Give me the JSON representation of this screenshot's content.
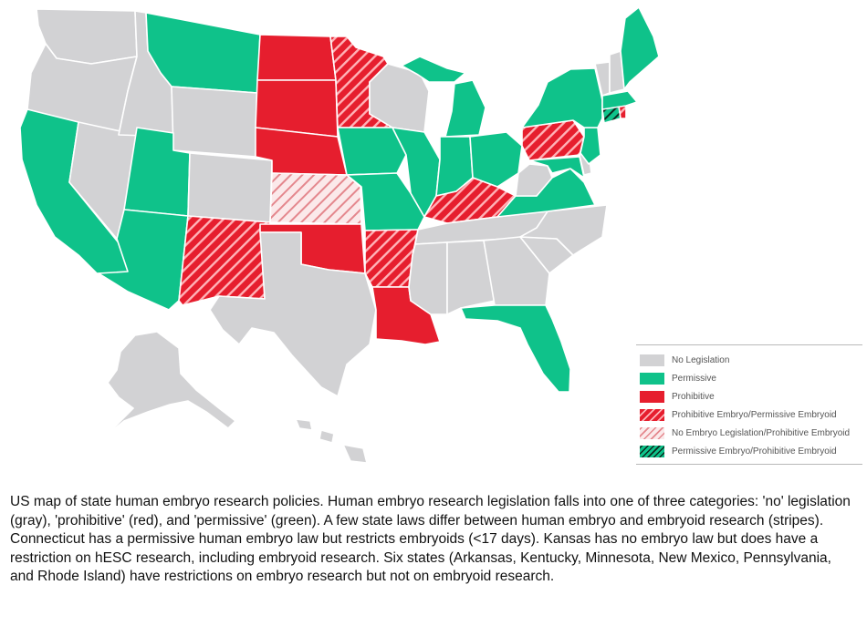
{
  "colors": {
    "no_legislation": "#d2d2d4",
    "permissive": "#0fc28a",
    "prohibitive": "#e61e2e",
    "stripe_light": "#ffffff",
    "border": "#ffffff"
  },
  "legend": {
    "items": [
      {
        "key": "none",
        "label": "No Legislation"
      },
      {
        "key": "perm",
        "label": "Permissive"
      },
      {
        "key": "proh",
        "label": "Prohibitive"
      },
      {
        "key": "redstripe",
        "label": "Prohibitive Embryo/Permissive Embryoid"
      },
      {
        "key": "pinkstripe",
        "label": "No Embryo Legislation/Prohibitive Embryoid"
      },
      {
        "key": "greenstripe",
        "label": "Permissive Embryo/Prohibitive Embryoid"
      }
    ]
  },
  "caption": "US map of state human embryo research policies. Human embryo research legislation falls into one of three categories: 'no' legislation (gray), 'prohibitive' (red), and 'permissive' (green). A few state laws differ between human embryo and embryoid research (stripes). Connecticut has a permissive human embryo law but restricts embryoids (<17 days). Kansas has no embryo law but does have a restriction on hESC research, including embryoid research. Six states (Arkansas, Kentucky, Minnesota, New Mexico, Pennsylvania, and Rhode Island) have restrictions on embryo research but not on embryoid research.",
  "states": [
    {
      "id": "WA",
      "name": "Washington",
      "cat": "none"
    },
    {
      "id": "OR",
      "name": "Oregon",
      "cat": "none"
    },
    {
      "id": "CA",
      "name": "California",
      "cat": "perm"
    },
    {
      "id": "NV",
      "name": "Nevada",
      "cat": "none"
    },
    {
      "id": "ID",
      "name": "Idaho",
      "cat": "none"
    },
    {
      "id": "MT",
      "name": "Montana",
      "cat": "perm"
    },
    {
      "id": "WY",
      "name": "Wyoming",
      "cat": "none"
    },
    {
      "id": "UT",
      "name": "Utah",
      "cat": "perm"
    },
    {
      "id": "AZ",
      "name": "Arizona",
      "cat": "perm"
    },
    {
      "id": "CO",
      "name": "Colorado",
      "cat": "none"
    },
    {
      "id": "NM",
      "name": "New Mexico",
      "cat": "redstripe"
    },
    {
      "id": "ND",
      "name": "North Dakota",
      "cat": "proh"
    },
    {
      "id": "SD",
      "name": "South Dakota",
      "cat": "proh"
    },
    {
      "id": "NE",
      "name": "Nebraska",
      "cat": "proh"
    },
    {
      "id": "KS",
      "name": "Kansas",
      "cat": "pinkstripe"
    },
    {
      "id": "OK",
      "name": "Oklahoma",
      "cat": "proh"
    },
    {
      "id": "TX",
      "name": "Texas",
      "cat": "none"
    },
    {
      "id": "MN",
      "name": "Minnesota",
      "cat": "redstripe"
    },
    {
      "id": "IA",
      "name": "Iowa",
      "cat": "perm"
    },
    {
      "id": "MO",
      "name": "Missouri",
      "cat": "perm"
    },
    {
      "id": "AR",
      "name": "Arkansas",
      "cat": "redstripe"
    },
    {
      "id": "LA",
      "name": "Louisiana",
      "cat": "proh"
    },
    {
      "id": "WI",
      "name": "Wisconsin",
      "cat": "none"
    },
    {
      "id": "IL",
      "name": "Illinois",
      "cat": "perm"
    },
    {
      "id": "MI",
      "name": "Michigan",
      "cat": "perm"
    },
    {
      "id": "MI_UP",
      "name": "Michigan Upper Peninsula",
      "cat": "perm"
    },
    {
      "id": "IN",
      "name": "Indiana",
      "cat": "perm"
    },
    {
      "id": "OH",
      "name": "Ohio",
      "cat": "perm"
    },
    {
      "id": "KY",
      "name": "Kentucky",
      "cat": "redstripe"
    },
    {
      "id": "TN",
      "name": "Tennessee",
      "cat": "none"
    },
    {
      "id": "MS",
      "name": "Mississippi",
      "cat": "none"
    },
    {
      "id": "AL",
      "name": "Alabama",
      "cat": "none"
    },
    {
      "id": "GA",
      "name": "Georgia",
      "cat": "none"
    },
    {
      "id": "FL",
      "name": "Florida",
      "cat": "perm"
    },
    {
      "id": "SC",
      "name": "South Carolina",
      "cat": "none"
    },
    {
      "id": "NC",
      "name": "North Carolina",
      "cat": "none"
    },
    {
      "id": "VA",
      "name": "Virginia",
      "cat": "perm"
    },
    {
      "id": "WV",
      "name": "West Virginia",
      "cat": "none"
    },
    {
      "id": "MD",
      "name": "Maryland",
      "cat": "perm"
    },
    {
      "id": "DE",
      "name": "Delaware",
      "cat": "none"
    },
    {
      "id": "PA",
      "name": "Pennsylvania",
      "cat": "redstripe"
    },
    {
      "id": "NJ",
      "name": "New Jersey",
      "cat": "perm"
    },
    {
      "id": "NY",
      "name": "New York",
      "cat": "perm"
    },
    {
      "id": "CT",
      "name": "Connecticut",
      "cat": "greenstripe"
    },
    {
      "id": "RI",
      "name": "Rhode Island",
      "cat": "redstripe"
    },
    {
      "id": "MA",
      "name": "Massachusetts",
      "cat": "perm"
    },
    {
      "id": "VT",
      "name": "Vermont",
      "cat": "none"
    },
    {
      "id": "NH",
      "name": "New Hampshire",
      "cat": "none"
    },
    {
      "id": "ME",
      "name": "Maine",
      "cat": "perm"
    },
    {
      "id": "AK",
      "name": "Alaska",
      "cat": "none"
    },
    {
      "id": "HI",
      "name": "Hawaii",
      "cat": "none"
    }
  ]
}
